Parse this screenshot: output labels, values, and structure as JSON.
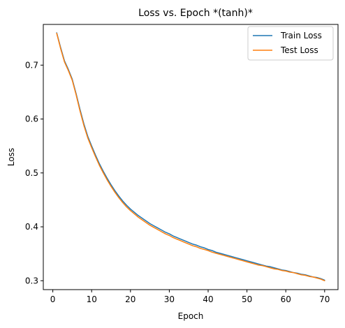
{
  "chart_data": {
    "type": "line",
    "title": "Loss vs. Epoch  *(tanh)*",
    "xlabel": "Epoch",
    "ylabel": "Loss",
    "xlim": [
      -2.45,
      73.45
    ],
    "ylim": [
      0.2835,
      0.7755
    ],
    "xticks": [
      0,
      10,
      20,
      30,
      40,
      50,
      60,
      70
    ],
    "yticks": [
      0.3,
      0.4,
      0.5,
      0.6,
      0.7
    ],
    "ytick_labels": [
      "0.3",
      "0.4",
      "0.5",
      "0.6",
      "0.7"
    ],
    "grid": false,
    "legend": {
      "position": "top-right"
    },
    "x": [
      1,
      2,
      3,
      4,
      5,
      6,
      7,
      8,
      9,
      10,
      11,
      12,
      13,
      14,
      15,
      16,
      17,
      18,
      19,
      20,
      21,
      22,
      23,
      24,
      25,
      26,
      27,
      28,
      29,
      30,
      31,
      32,
      33,
      34,
      35,
      36,
      37,
      38,
      39,
      40,
      41,
      42,
      43,
      44,
      45,
      46,
      47,
      48,
      49,
      50,
      51,
      52,
      53,
      54,
      55,
      56,
      57,
      58,
      59,
      60,
      61,
      62,
      63,
      64,
      65,
      66,
      67,
      68,
      69,
      70
    ],
    "series": [
      {
        "name": "Train Loss",
        "color": "#1f77b4",
        "values": [
          0.76,
          0.733,
          0.708,
          0.692,
          0.674,
          0.647,
          0.618,
          0.591,
          0.568,
          0.55,
          0.533,
          0.517,
          0.503,
          0.49,
          0.478,
          0.467,
          0.457,
          0.448,
          0.44,
          0.433,
          0.427,
          0.421,
          0.416,
          0.411,
          0.406,
          0.402,
          0.398,
          0.394,
          0.39,
          0.387,
          0.383,
          0.38,
          0.377,
          0.374,
          0.371,
          0.368,
          0.366,
          0.363,
          0.361,
          0.358,
          0.356,
          0.353,
          0.351,
          0.349,
          0.347,
          0.345,
          0.343,
          0.341,
          0.339,
          0.337,
          0.335,
          0.333,
          0.331,
          0.329,
          0.327,
          0.326,
          0.324,
          0.322,
          0.32,
          0.319,
          0.317,
          0.315,
          0.314,
          0.312,
          0.311,
          0.309,
          0.307,
          0.306,
          0.304,
          0.301
        ]
      },
      {
        "name": "Test Loss",
        "color": "#ff7f0e",
        "values": [
          0.759,
          0.731,
          0.706,
          0.69,
          0.672,
          0.645,
          0.615,
          0.588,
          0.565,
          0.547,
          0.53,
          0.514,
          0.5,
          0.487,
          0.475,
          0.464,
          0.454,
          0.445,
          0.437,
          0.43,
          0.424,
          0.418,
          0.413,
          0.408,
          0.403,
          0.399,
          0.395,
          0.391,
          0.387,
          0.384,
          0.38,
          0.377,
          0.374,
          0.371,
          0.368,
          0.365,
          0.363,
          0.36,
          0.358,
          0.356,
          0.353,
          0.351,
          0.349,
          0.347,
          0.345,
          0.343,
          0.341,
          0.339,
          0.337,
          0.335,
          0.333,
          0.331,
          0.329,
          0.328,
          0.326,
          0.324,
          0.322,
          0.321,
          0.319,
          0.318,
          0.316,
          0.315,
          0.313,
          0.311,
          0.31,
          0.308,
          0.307,
          0.305,
          0.303,
          0.3
        ]
      }
    ]
  }
}
